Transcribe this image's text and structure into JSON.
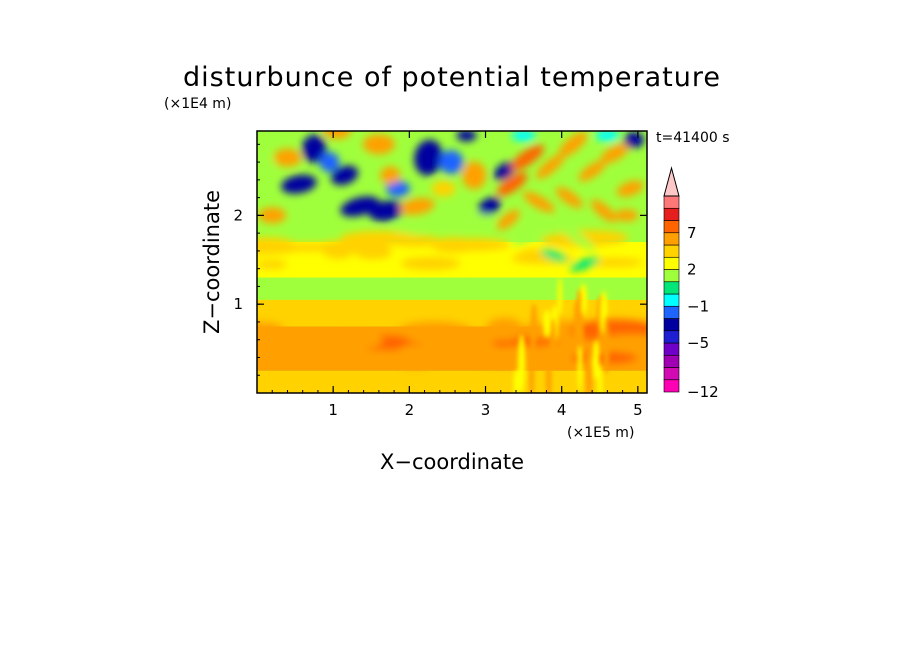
{
  "chart_data": {
    "type": "heatmap",
    "title": "disturbunce of potential temperature",
    "xlabel": "X−coordinate",
    "ylabel": "Z−coordinate",
    "x_unit": "(×1E5 m)",
    "y_unit": "(×1E4 m)",
    "time_label": "t=41400 s",
    "xlim": [
      0,
      5.12
    ],
    "ylim": [
      0,
      2.95
    ],
    "x_ticks": [
      {
        "value": 1,
        "label": "1"
      },
      {
        "value": 2,
        "label": "2"
      },
      {
        "value": 3,
        "label": "3"
      },
      {
        "value": 4,
        "label": "4"
      },
      {
        "value": 5,
        "label": "5"
      }
    ],
    "y_ticks": [
      {
        "value": 1,
        "label": "1"
      },
      {
        "value": 2,
        "label": "2"
      }
    ],
    "colorbar": {
      "levels": [
        -12,
        -11,
        -9,
        -7,
        -5,
        -3,
        -2,
        -1,
        0,
        1,
        2,
        3,
        5,
        7,
        9,
        11
      ],
      "colors": [
        "#ff00b4",
        "#d20ab4",
        "#a000b4",
        "#6e00c8",
        "#1e1ed2",
        "#0000a0",
        "#1e64ff",
        "#00ffff",
        "#00e678",
        "#a0ff3c",
        "#ffff00",
        "#ffd200",
        "#ffa000",
        "#ff6400",
        "#e61e1e",
        "#ff7878",
        "#ffc8c8"
      ],
      "labels": [
        {
          "level": -12,
          "label": "−12"
        },
        {
          "level": -5,
          "label": "−5"
        },
        {
          "level": -1,
          "label": "−1"
        },
        {
          "level": 2,
          "label": "2"
        },
        {
          "level": 7,
          "label": "7"
        }
      ]
    },
    "description_bands": [
      {
        "z_from": 0.0,
        "z_to": 0.25,
        "value": 2.5
      },
      {
        "z_from": 0.25,
        "z_to": 0.75,
        "value": 3.4
      },
      {
        "z_from": 0.75,
        "z_to": 1.05,
        "value": 2.3
      },
      {
        "z_from": 1.05,
        "z_to": 1.3,
        "value": 0.3
      },
      {
        "z_from": 1.3,
        "z_to": 1.7,
        "value": 1.8
      },
      {
        "z_from": 1.7,
        "z_to": 2.95,
        "value": 0.8
      }
    ]
  }
}
